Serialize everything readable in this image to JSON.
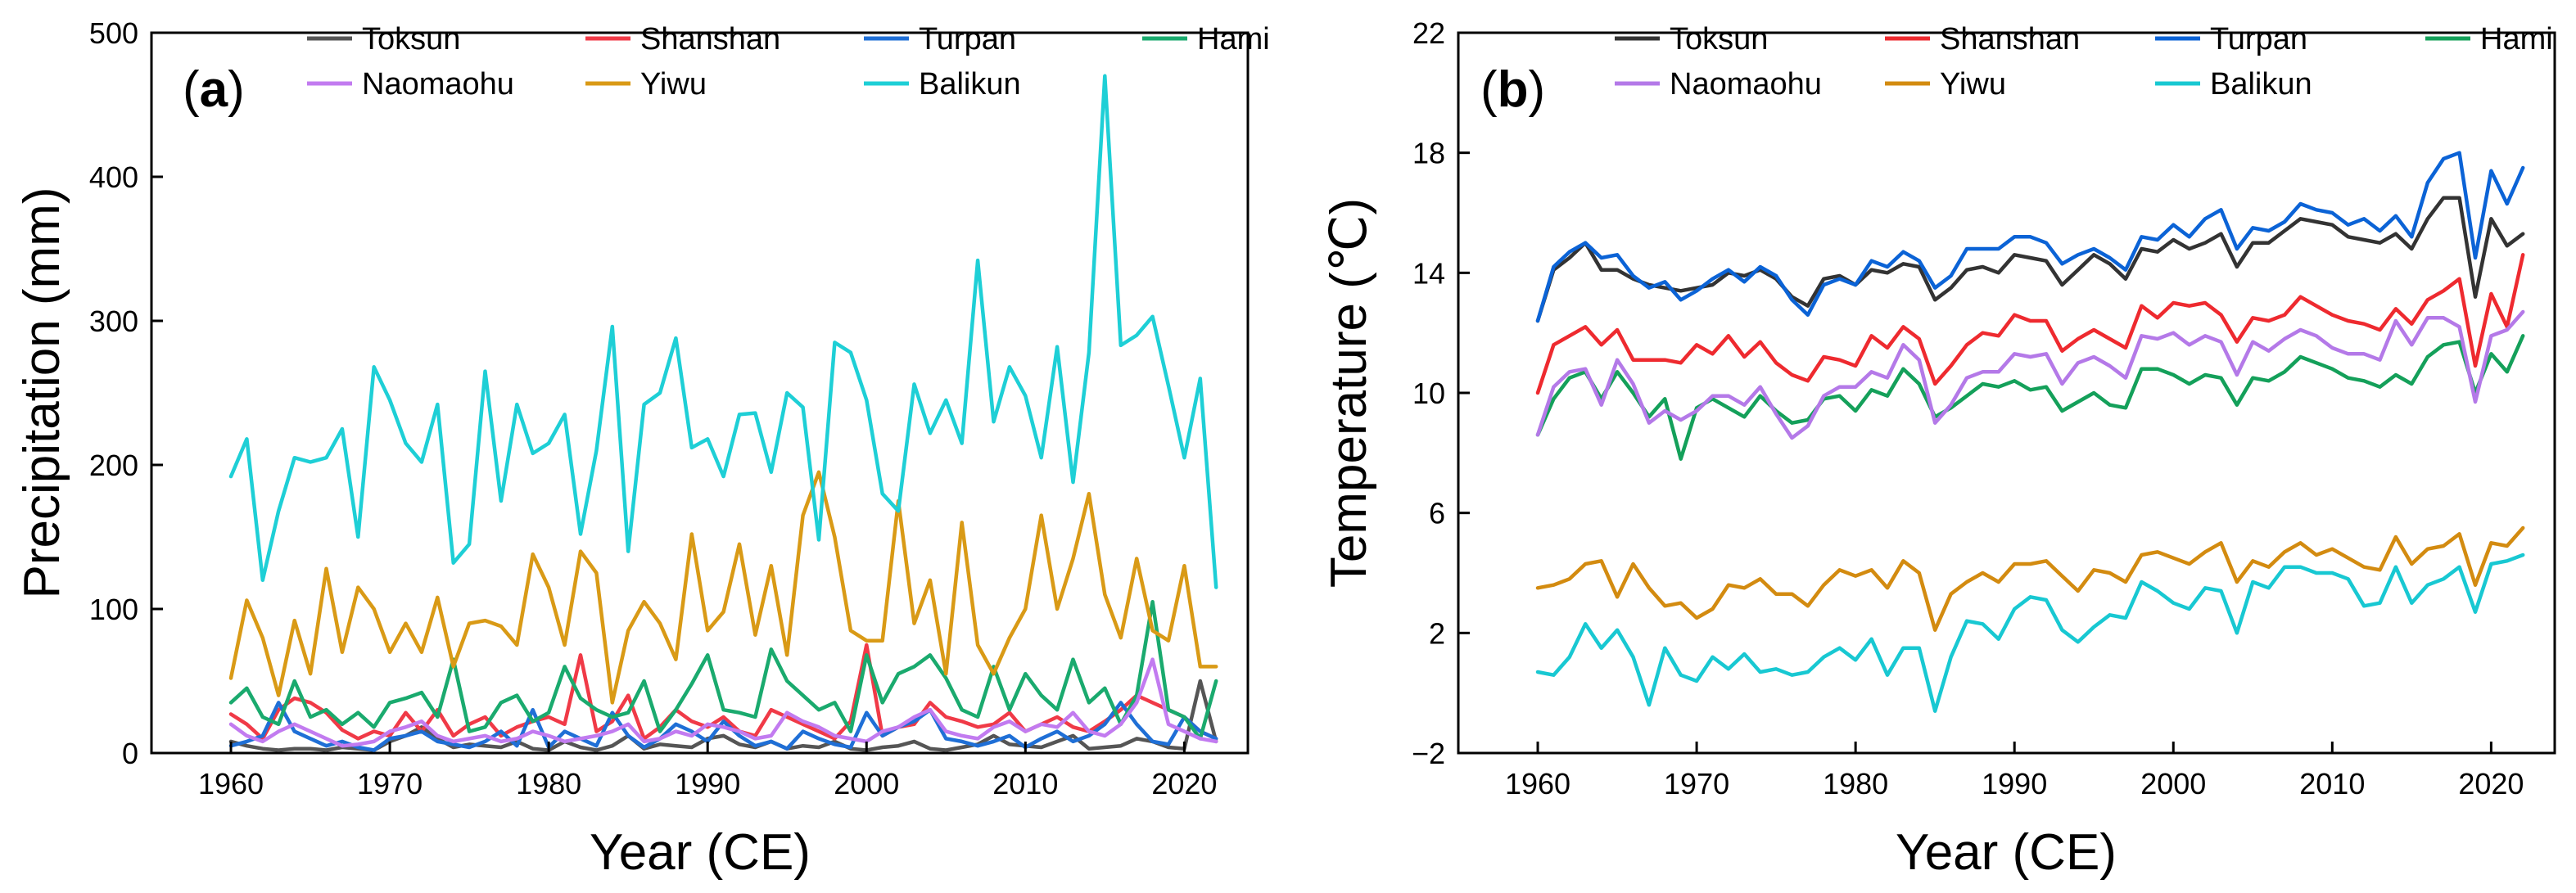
{
  "chart_data": [
    {
      "panel": "a",
      "type": "line",
      "xlabel": "Year (CE)",
      "ylabel": "Precipitation (mm)",
      "xlim": [
        1955,
        2024
      ],
      "ylim": [
        0,
        500
      ],
      "xticks": [
        1960,
        1970,
        1980,
        1990,
        2000,
        2010,
        2020
      ],
      "yticks": [
        0,
        100,
        200,
        300,
        400,
        500
      ],
      "x_start": 1960,
      "legend_position": "top",
      "series": [
        {
          "name": "Toksun",
          "color": "#555555",
          "values": [
            8,
            5,
            3,
            2,
            3,
            3,
            2,
            4,
            3,
            2,
            8,
            12,
            18,
            10,
            4,
            6,
            5,
            4,
            8,
            3,
            2,
            8,
            4,
            2,
            5,
            12,
            3,
            6,
            5,
            4,
            10,
            12,
            6,
            4,
            8,
            3,
            5,
            4,
            8,
            3,
            2,
            4,
            5,
            8,
            3,
            2,
            4,
            6,
            12,
            6,
            5,
            4,
            8,
            12,
            3,
            4,
            5,
            10,
            8,
            4,
            3,
            50,
            8
          ]
        },
        {
          "name": "Shanshan",
          "color": "#f03a47",
          "values": [
            27,
            20,
            10,
            30,
            38,
            35,
            28,
            16,
            10,
            15,
            12,
            28,
            15,
            30,
            12,
            20,
            25,
            12,
            18,
            22,
            25,
            20,
            68,
            15,
            22,
            40,
            10,
            18,
            30,
            22,
            18,
            25,
            15,
            12,
            30,
            25,
            20,
            15,
            10,
            22,
            75,
            12,
            18,
            20,
            35,
            25,
            22,
            18,
            20,
            28,
            15,
            20,
            25,
            18,
            15,
            22,
            30,
            40,
            35,
            30,
            25,
            15,
            10
          ]
        },
        {
          "name": "Turpan",
          "color": "#1f6fd6",
          "values": [
            5,
            8,
            12,
            35,
            15,
            10,
            5,
            8,
            4,
            2,
            10,
            12,
            15,
            8,
            6,
            4,
            8,
            15,
            5,
            30,
            4,
            15,
            10,
            5,
            28,
            12,
            4,
            10,
            20,
            15,
            8,
            22,
            12,
            5,
            8,
            3,
            15,
            10,
            6,
            4,
            28,
            12,
            18,
            22,
            30,
            10,
            8,
            5,
            8,
            12,
            4,
            10,
            15,
            8,
            12,
            20,
            35,
            20,
            8,
            6,
            25,
            15,
            10
          ]
        },
        {
          "name": "Hami",
          "color": "#1aaa6e",
          "values": [
            35,
            45,
            25,
            20,
            50,
            25,
            30,
            20,
            28,
            18,
            35,
            38,
            42,
            25,
            65,
            15,
            18,
            35,
            40,
            22,
            28,
            60,
            38,
            30,
            25,
            28,
            50,
            15,
            30,
            48,
            68,
            30,
            28,
            25,
            72,
            50,
            40,
            30,
            35,
            15,
            68,
            35,
            55,
            60,
            68,
            52,
            30,
            25,
            60,
            30,
            55,
            40,
            30,
            65,
            35,
            45,
            20,
            40,
            105,
            30,
            25,
            10,
            50
          ]
        },
        {
          "name": "Naomaohu",
          "color": "#c27bf0",
          "values": [
            20,
            12,
            8,
            15,
            20,
            15,
            10,
            5,
            6,
            8,
            15,
            18,
            22,
            12,
            8,
            10,
            12,
            8,
            10,
            15,
            12,
            8,
            10,
            12,
            15,
            20,
            8,
            10,
            15,
            12,
            20,
            18,
            15,
            10,
            12,
            28,
            22,
            18,
            12,
            10,
            8,
            15,
            18,
            25,
            30,
            15,
            12,
            10,
            18,
            22,
            15,
            20,
            18,
            28,
            15,
            12,
            20,
            35,
            65,
            20,
            15,
            10,
            8
          ]
        },
        {
          "name": "Yiwu",
          "color": "#d99a16",
          "values": [
            52,
            106,
            80,
            40,
            92,
            55,
            128,
            70,
            115,
            100,
            70,
            90,
            70,
            108,
            60,
            90,
            92,
            88,
            75,
            138,
            115,
            75,
            140,
            125,
            35,
            85,
            105,
            90,
            65,
            152,
            85,
            98,
            145,
            82,
            130,
            68,
            165,
            195,
            150,
            85,
            78,
            78,
            175,
            90,
            120,
            55,
            160,
            75,
            55,
            80,
            100,
            165,
            100,
            135,
            180,
            110,
            80,
            135,
            85,
            78,
            130,
            60,
            60
          ]
        },
        {
          "name": "Balikun",
          "color": "#1ecfd6",
          "values": [
            192,
            218,
            120,
            168,
            205,
            202,
            205,
            225,
            150,
            268,
            245,
            215,
            202,
            242,
            132,
            145,
            265,
            175,
            242,
            208,
            215,
            235,
            152,
            210,
            296,
            140,
            242,
            250,
            288,
            212,
            218,
            192,
            235,
            236,
            195,
            250,
            240,
            148,
            285,
            278,
            245,
            180,
            168,
            256,
            222,
            245,
            215,
            342,
            230,
            268,
            248,
            205,
            282,
            188,
            278,
            470,
            283,
            290,
            303,
            255,
            205,
            260,
            115
          ]
        }
      ]
    },
    {
      "panel": "b",
      "type": "line",
      "xlabel": "Year (CE)",
      "ylabel": "Temperature (℃)",
      "xlim": [
        1955,
        2024
      ],
      "ylim": [
        -2,
        22
      ],
      "xticks": [
        1960,
        1970,
        1980,
        1990,
        2000,
        2010,
        2020
      ],
      "yticks": [
        -2,
        2,
        6,
        10,
        14,
        18,
        22
      ],
      "ytick_labels": [
        "−2",
        "2",
        "6",
        "10",
        "14",
        "18",
        "22"
      ],
      "x_start": 1960,
      "legend_position": "top",
      "series": [
        {
          "name": "Toksun",
          "color": "#333333",
          "values": [
            12.4,
            14.1,
            14.5,
            15.0,
            14.1,
            14.1,
            13.8,
            13.6,
            13.5,
            13.4,
            13.5,
            13.6,
            14.0,
            13.9,
            14.1,
            13.8,
            13.2,
            12.9,
            13.8,
            13.9,
            13.6,
            14.1,
            14.0,
            14.3,
            14.2,
            13.1,
            13.5,
            14.1,
            14.2,
            14.0,
            14.6,
            14.5,
            14.4,
            13.6,
            14.1,
            14.6,
            14.3,
            13.8,
            14.8,
            14.7,
            15.1,
            14.8,
            15.0,
            15.3,
            14.2,
            15.0,
            15.0,
            15.4,
            15.8,
            15.7,
            15.6,
            15.2,
            15.1,
            15.0,
            15.3,
            14.8,
            15.8,
            16.5,
            16.5,
            13.2,
            15.8,
            14.9,
            15.3
          ]
        },
        {
          "name": "Shanshan",
          "color": "#ee2a2f",
          "values": [
            10.0,
            11.6,
            11.9,
            12.2,
            11.6,
            12.1,
            11.1,
            11.1,
            11.1,
            11.0,
            11.6,
            11.3,
            11.9,
            11.2,
            11.7,
            11.0,
            10.6,
            10.4,
            11.2,
            11.1,
            10.9,
            11.9,
            11.5,
            12.2,
            11.8,
            10.3,
            10.9,
            11.6,
            12.0,
            11.9,
            12.6,
            12.4,
            12.4,
            11.4,
            11.8,
            12.1,
            11.8,
            11.5,
            12.9,
            12.5,
            13.0,
            12.9,
            13.0,
            12.6,
            11.7,
            12.5,
            12.4,
            12.6,
            13.2,
            12.9,
            12.6,
            12.4,
            12.3,
            12.1,
            12.8,
            12.3,
            13.1,
            13.4,
            13.8,
            10.9,
            13.3,
            12.2,
            14.6
          ]
        },
        {
          "name": "Turpan",
          "color": "#0b63d6",
          "values": [
            12.4,
            14.2,
            14.7,
            15.0,
            14.5,
            14.6,
            13.9,
            13.5,
            13.7,
            13.1,
            13.4,
            13.8,
            14.1,
            13.7,
            14.2,
            13.9,
            13.1,
            12.6,
            13.6,
            13.8,
            13.6,
            14.4,
            14.2,
            14.7,
            14.4,
            13.5,
            13.9,
            14.8,
            14.8,
            14.8,
            15.2,
            15.2,
            15.0,
            14.3,
            14.6,
            14.8,
            14.5,
            14.1,
            15.2,
            15.1,
            15.6,
            15.2,
            15.8,
            16.1,
            14.8,
            15.5,
            15.4,
            15.7,
            16.3,
            16.1,
            16.0,
            15.6,
            15.8,
            15.4,
            15.9,
            15.2,
            17.0,
            17.8,
            18.0,
            14.5,
            17.4,
            16.3,
            17.5
          ]
        },
        {
          "name": "Hami",
          "color": "#14a05a",
          "values": [
            8.6,
            9.8,
            10.5,
            10.7,
            9.8,
            10.7,
            10.0,
            9.2,
            9.8,
            7.8,
            9.5,
            9.8,
            9.5,
            9.2,
            9.9,
            9.4,
            9.0,
            9.1,
            9.8,
            9.9,
            9.4,
            10.1,
            9.9,
            10.8,
            10.3,
            9.2,
            9.5,
            9.9,
            10.3,
            10.2,
            10.4,
            10.1,
            10.2,
            9.4,
            9.7,
            10.0,
            9.6,
            9.5,
            10.8,
            10.8,
            10.6,
            10.3,
            10.6,
            10.5,
            9.6,
            10.5,
            10.4,
            10.7,
            11.2,
            11.0,
            10.8,
            10.5,
            10.4,
            10.2,
            10.6,
            10.3,
            11.2,
            11.6,
            11.7,
            10.0,
            11.3,
            10.7,
            11.9
          ]
        },
        {
          "name": "Naomaohu",
          "color": "#b479e8",
          "values": [
            8.6,
            10.2,
            10.7,
            10.8,
            9.6,
            11.1,
            10.3,
            9.0,
            9.4,
            9.1,
            9.4,
            9.9,
            9.9,
            9.6,
            10.2,
            9.3,
            8.5,
            8.9,
            9.9,
            10.2,
            10.2,
            10.7,
            10.5,
            11.6,
            11.1,
            9.0,
            9.6,
            10.5,
            10.7,
            10.7,
            11.3,
            11.2,
            11.3,
            10.3,
            11.0,
            11.2,
            10.9,
            10.5,
            11.9,
            11.8,
            12.0,
            11.6,
            11.9,
            11.7,
            10.6,
            11.7,
            11.4,
            11.8,
            12.1,
            11.9,
            11.5,
            11.3,
            11.3,
            11.1,
            12.4,
            11.6,
            12.5,
            12.5,
            12.2,
            9.7,
            11.9,
            12.1,
            12.7
          ]
        },
        {
          "name": "Yiwu",
          "color": "#d38b10",
          "values": [
            3.5,
            3.6,
            3.8,
            4.3,
            4.4,
            3.2,
            4.3,
            3.5,
            2.9,
            3.0,
            2.5,
            2.8,
            3.6,
            3.5,
            3.8,
            3.3,
            3.3,
            2.9,
            3.6,
            4.1,
            3.9,
            4.1,
            3.5,
            4.4,
            4.0,
            2.1,
            3.3,
            3.7,
            4.0,
            3.7,
            4.3,
            4.3,
            4.4,
            3.9,
            3.4,
            4.1,
            4.0,
            3.7,
            4.6,
            4.7,
            4.5,
            4.3,
            4.7,
            5.0,
            3.7,
            4.4,
            4.2,
            4.7,
            5.0,
            4.6,
            4.8,
            4.5,
            4.2,
            4.1,
            5.2,
            4.3,
            4.8,
            4.9,
            5.3,
            3.6,
            5.0,
            4.9,
            5.5
          ]
        },
        {
          "name": "Balikun",
          "color": "#18c8d2",
          "values": [
            0.7,
            0.6,
            1.2,
            2.3,
            1.5,
            2.1,
            1.2,
            -0.4,
            1.5,
            0.6,
            0.4,
            1.2,
            0.8,
            1.3,
            0.7,
            0.8,
            0.6,
            0.7,
            1.2,
            1.5,
            1.1,
            1.8,
            0.6,
            1.5,
            1.5,
            -0.6,
            1.2,
            2.4,
            2.3,
            1.8,
            2.8,
            3.2,
            3.1,
            2.1,
            1.7,
            2.2,
            2.6,
            2.5,
            3.7,
            3.4,
            3.0,
            2.8,
            3.5,
            3.4,
            2.0,
            3.7,
            3.5,
            4.2,
            4.2,
            4.0,
            4.0,
            3.8,
            2.9,
            3.0,
            4.2,
            3.0,
            3.6,
            3.8,
            4.2,
            2.7,
            4.3,
            4.4,
            4.6
          ]
        }
      ]
    }
  ]
}
